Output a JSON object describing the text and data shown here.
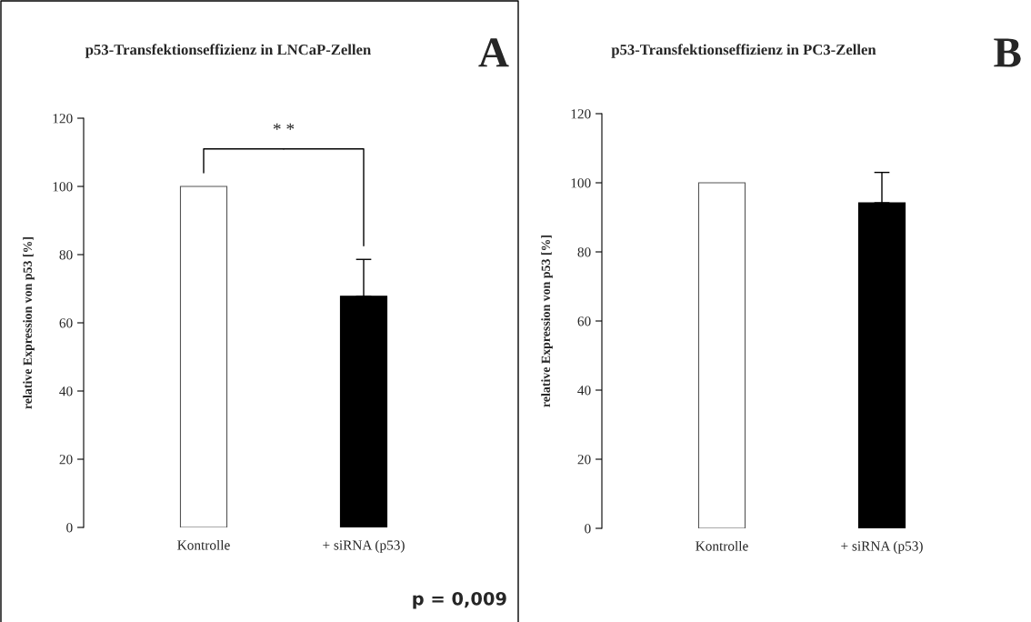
{
  "chart_data": [
    {
      "type": "bar",
      "title": "p53-Transfektionseffizienz in LNCaP-Zellen",
      "ylabel": "relative Expression von p53 [%]",
      "categories": [
        "Kontrolle",
        "+ siRNA (p53)"
      ],
      "values": [
        100,
        67.8
      ],
      "colors": [
        "#ffffff",
        "#000000"
      ],
      "errors": [
        null,
        [
          67.8,
          78.6
        ]
      ],
      "ylim": [
        0,
        120
      ],
      "yticks": [
        0,
        20,
        40,
        60,
        80,
        100,
        120
      ],
      "grid": false,
      "annotations": [
        "A",
        "* *",
        "p = 0,009"
      ]
    },
    {
      "type": "bar",
      "title": "p53-Transfektionseffizienz in PC3-Zellen",
      "ylabel": "relative Expression von p53 [%]",
      "categories": [
        "Kontrolle",
        "+ siRNA (p53)"
      ],
      "values": [
        100,
        94.2
      ],
      "colors": [
        "#ffffff",
        "#000000"
      ],
      "errors": [
        null,
        [
          94.2,
          103
        ]
      ],
      "ylim": [
        0,
        120
      ],
      "yticks": [
        0,
        20,
        40,
        60,
        80,
        100,
        120
      ],
      "grid": false,
      "annotations": [
        "B"
      ]
    }
  ]
}
